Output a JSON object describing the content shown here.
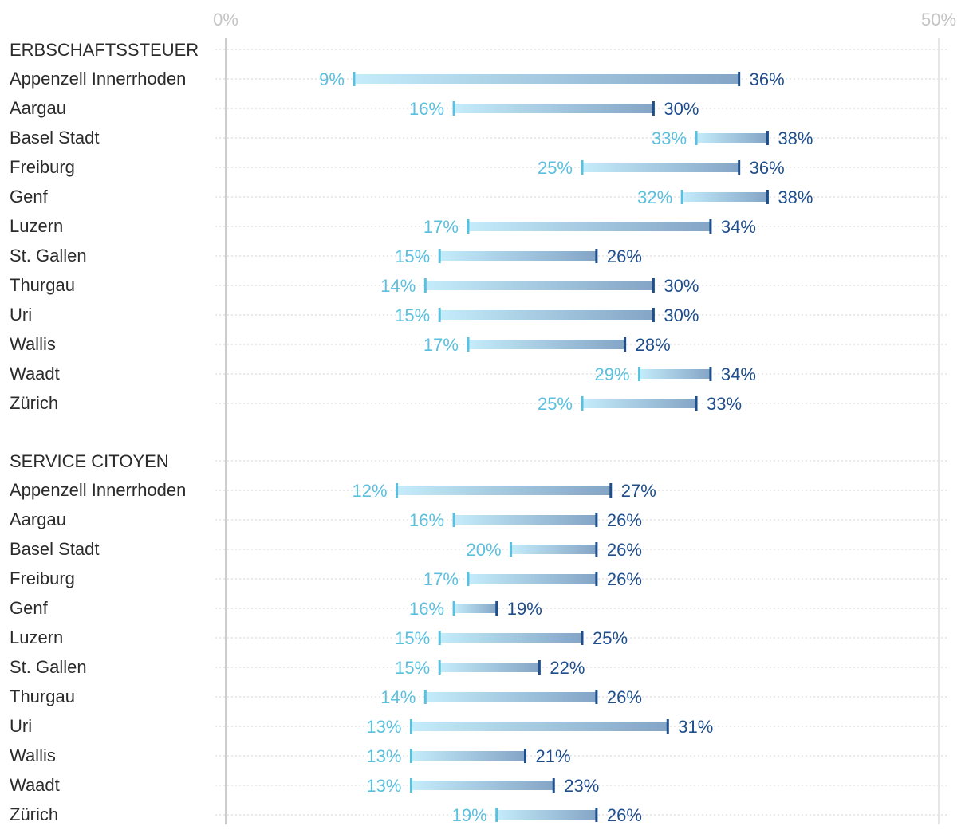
{
  "chart_data": {
    "type": "dumbbell",
    "x_axis": {
      "min": 0,
      "max": 50,
      "unit": "%",
      "tick_labels": [
        "0%",
        "50%"
      ]
    },
    "colors": {
      "low": "#5bc0de",
      "high": "#1f4e8c",
      "bar_low": "#bfeaf8",
      "bar_high": "#86a7c8",
      "grid": "#d6d6d6",
      "axis": "#cccccc"
    },
    "sections": [
      {
        "title": "ERBSCHAFTSSTEUER",
        "rows": [
          {
            "label": "Appenzell Innerrhoden",
            "low": 9,
            "high": 36,
            "low_text": "9%",
            "high_text": "36%"
          },
          {
            "label": "Aargau",
            "low": 16,
            "high": 30,
            "low_text": "16%",
            "high_text": "30%"
          },
          {
            "label": "Basel Stadt",
            "low": 33,
            "high": 38,
            "low_text": "33%",
            "high_text": "38%"
          },
          {
            "label": "Freiburg",
            "low": 25,
            "high": 36,
            "low_text": "25%",
            "high_text": "36%"
          },
          {
            "label": "Genf",
            "low": 32,
            "high": 38,
            "low_text": "32%",
            "high_text": "38%"
          },
          {
            "label": "Luzern",
            "low": 17,
            "high": 34,
            "low_text": "17%",
            "high_text": "34%"
          },
          {
            "label": "St. Gallen",
            "low": 15,
            "high": 26,
            "low_text": "15%",
            "high_text": "26%"
          },
          {
            "label": "Thurgau",
            "low": 14,
            "high": 30,
            "low_text": "14%",
            "high_text": "30%"
          },
          {
            "label": "Uri",
            "low": 15,
            "high": 30,
            "low_text": "15%",
            "high_text": "30%"
          },
          {
            "label": "Wallis",
            "low": 17,
            "high": 28,
            "low_text": "17%",
            "high_text": "28%"
          },
          {
            "label": "Waadt",
            "low": 29,
            "high": 34,
            "low_text": "29%",
            "high_text": "34%"
          },
          {
            "label": "Zürich",
            "low": 25,
            "high": 33,
            "low_text": "25%",
            "high_text": "33%"
          }
        ]
      },
      {
        "title": "SERVICE CITOYEN",
        "rows": [
          {
            "label": "Appenzell Innerrhoden",
            "low": 12,
            "high": 27,
            "low_text": "12%",
            "high_text": "27%"
          },
          {
            "label": "Aargau",
            "low": 16,
            "high": 26,
            "low_text": "16%",
            "high_text": "26%"
          },
          {
            "label": "Basel Stadt",
            "low": 20,
            "high": 26,
            "low_text": "20%",
            "high_text": "26%"
          },
          {
            "label": "Freiburg",
            "low": 17,
            "high": 26,
            "low_text": "17%",
            "high_text": "26%"
          },
          {
            "label": "Genf",
            "low": 16,
            "high": 19,
            "low_text": "16%",
            "high_text": "19%"
          },
          {
            "label": "Luzern",
            "low": 15,
            "high": 25,
            "low_text": "15%",
            "high_text": "25%"
          },
          {
            "label": "St. Gallen",
            "low": 15,
            "high": 22,
            "low_text": "15%",
            "high_text": "22%"
          },
          {
            "label": "Thurgau",
            "low": 14,
            "high": 26,
            "low_text": "14%",
            "high_text": "26%"
          },
          {
            "label": "Uri",
            "low": 13,
            "high": 31,
            "low_text": "13%",
            "high_text": "31%"
          },
          {
            "label": "Wallis",
            "low": 13,
            "high": 21,
            "low_text": "13%",
            "high_text": "21%"
          },
          {
            "label": "Waadt",
            "low": 13,
            "high": 23,
            "low_text": "13%",
            "high_text": "23%"
          },
          {
            "label": "Zürich",
            "low": 19,
            "high": 26,
            "low_text": "19%",
            "high_text": "26%"
          }
        ]
      }
    ]
  }
}
